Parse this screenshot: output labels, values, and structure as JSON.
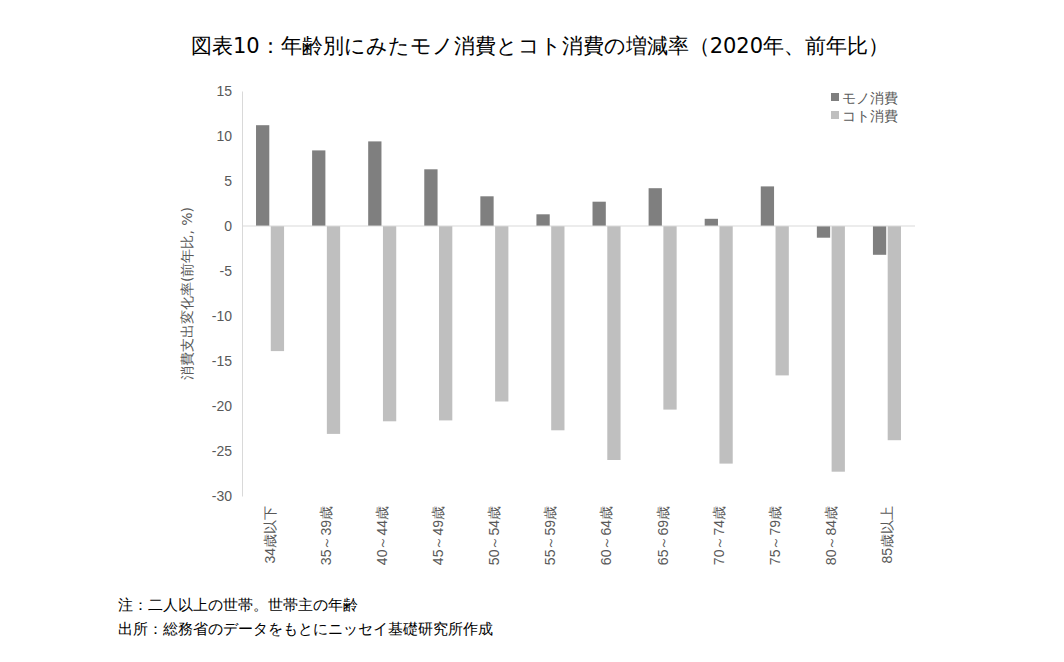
{
  "chart_data": {
    "type": "bar",
    "title": "図表10：年齢別にみたモノ消費とコト消費の増減率（2020年、前年比）",
    "y_label": "消費支出変化率(前年比, %)",
    "annotations": [
      "注：二人以上の世帯。世帯主の年齢",
      "出所：総務省のデータをもとにニッセイ基礎研究所作成"
    ],
    "categories": [
      "34歳以下",
      "35～39歳",
      "40～44歳",
      "45～49歳",
      "50～54歳",
      "55～59歳",
      "60～64歳",
      "65～69歳",
      "70～74歳",
      "75～79歳",
      "80～84歳",
      "85歳以上"
    ],
    "series": [
      {
        "name": "モノ消費",
        "color": "#7f7f7f",
        "values": [
          11.2,
          8.4,
          9.4,
          6.3,
          3.3,
          1.3,
          2.7,
          4.2,
          0.8,
          4.4,
          -1.3,
          -3.2
        ]
      },
      {
        "name": "コト消費",
        "color": "#bfbfbf",
        "values": [
          -13.9,
          -23.1,
          -21.7,
          -21.6,
          -19.5,
          -22.7,
          -26.0,
          -20.4,
          -26.4,
          -16.6,
          -27.3,
          -23.8
        ]
      }
    ],
    "ylim": [
      -30,
      15
    ],
    "yticks": [
      -30,
      -25,
      -20,
      -15,
      -10,
      -5,
      0,
      5,
      10,
      15
    ],
    "grid": false,
    "legend": "upper right"
  }
}
